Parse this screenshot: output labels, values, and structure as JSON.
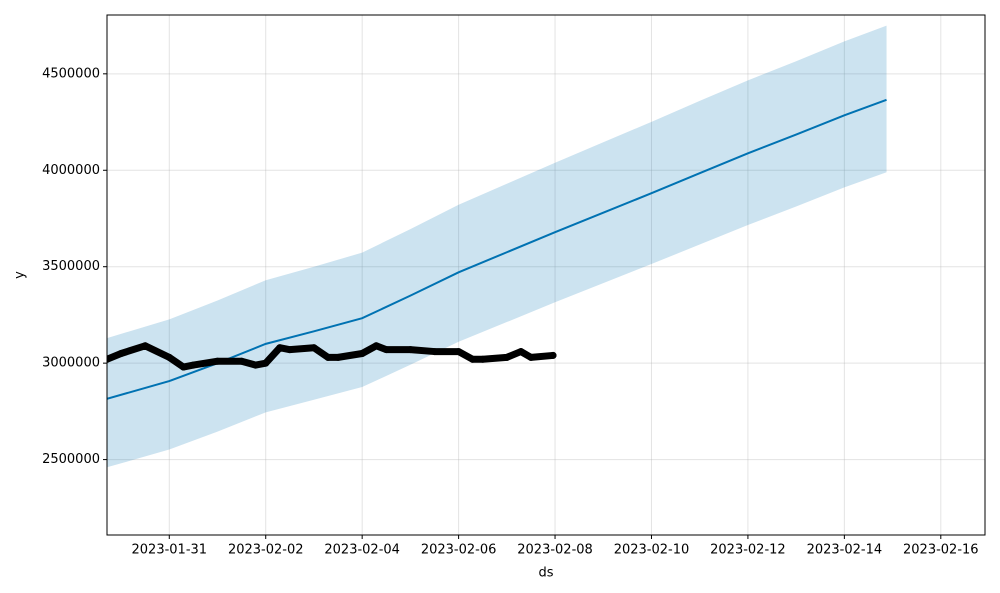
{
  "chart_data": {
    "type": "line",
    "xlabel": "ds",
    "ylabel": "y",
    "grid": true,
    "xlim": [
      "2023-01-29 17:00",
      "2023-02-16 22:00"
    ],
    "xticks": [
      "2023-01-31",
      "2023-02-02",
      "2023-02-04",
      "2023-02-06",
      "2023-02-08",
      "2023-02-10",
      "2023-02-12",
      "2023-02-14",
      "2023-02-16"
    ],
    "ylim": [
      2109000,
      4805000
    ],
    "yticks": [
      2500000,
      3000000,
      3500000,
      4000000,
      4500000
    ],
    "series": [
      {
        "type": "line",
        "color": "#0072b2",
        "band_color": "#0072b2",
        "x": [
          "2023-01-29 17:00",
          "2023-01-31 00:00",
          "2023-02-01 00:00",
          "2023-02-02 00:00",
          "2023-02-03 00:00",
          "2023-02-04 00:00",
          "2023-02-05 00:00",
          "2023-02-06 00:00",
          "2023-02-07 00:00",
          "2023-02-08 00:00",
          "2023-02-09 00:00",
          "2023-02-10 00:00",
          "2023-02-11 00:00",
          "2023-02-12 00:00",
          "2023-02-13 00:00",
          "2023-02-14 00:00",
          "2023-02-14 21:00"
        ],
        "values": [
          2815000,
          2907000,
          3000000,
          3100000,
          3165000,
          3233000,
          3350000,
          3471000,
          3575000,
          3679000,
          3780000,
          3881000,
          3985000,
          4088000,
          4185000,
          4285000,
          4365000
        ],
        "upper": [
          3130000,
          3227000,
          3325000,
          3430000,
          3500000,
          3573000,
          3695000,
          3821000,
          3930000,
          4039000,
          4145000,
          4251000,
          4360000,
          4466000,
          4565000,
          4668000,
          4750000
        ],
        "lower": [
          2460000,
          2552000,
          2645000,
          2745000,
          2810000,
          2876000,
          2992000,
          3111000,
          3213000,
          3316000,
          3415000,
          3514000,
          3615000,
          3716000,
          3812000,
          3911000,
          3990000
        ]
      },
      {
        "type": "scatter",
        "color": "#000000",
        "x": [
          "2023-01-29 17:00",
          "2023-01-30 00:00",
          "2023-01-30 12:00",
          "2023-01-31 00:00",
          "2023-01-31 07:00",
          "2023-01-31 12:00",
          "2023-02-01 00:00",
          "2023-02-01 12:00",
          "2023-02-01 19:00",
          "2023-02-02 00:00",
          "2023-02-02 07:00",
          "2023-02-02 12:00",
          "2023-02-03 00:00",
          "2023-02-03 07:00",
          "2023-02-03 12:00",
          "2023-02-04 00:00",
          "2023-02-04 07:00",
          "2023-02-04 12:00",
          "2023-02-05 00:00",
          "2023-02-05 12:00",
          "2023-02-06 00:00",
          "2023-02-06 07:00",
          "2023-02-06 12:00",
          "2023-02-07 00:00",
          "2023-02-07 07:00",
          "2023-02-07 12:00",
          "2023-02-07 23:00"
        ],
        "values": [
          3020000,
          3050000,
          3090000,
          3030000,
          2980000,
          2990000,
          3010000,
          3010000,
          2990000,
          3000000,
          3080000,
          3070000,
          3080000,
          3030000,
          3030000,
          3050000,
          3090000,
          3070000,
          3070000,
          3060000,
          3060000,
          3020000,
          3020000,
          3030000,
          3060000,
          3030000,
          3040000
        ]
      }
    ]
  }
}
